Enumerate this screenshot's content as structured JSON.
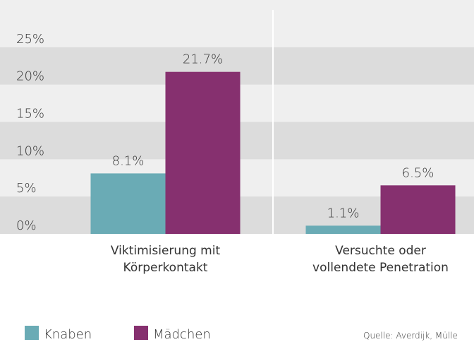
{
  "chart_data": {
    "type": "bar",
    "categories": [
      "Viktimisierung mit\nKörperkontakt",
      "Versuchte oder\nvollendete Penetration"
    ],
    "series": [
      {
        "name": "Knaben",
        "color": "#6aabb5",
        "values": [
          8.1,
          1.1
        ],
        "value_labels": [
          "8.1%",
          "1.1%"
        ]
      },
      {
        "name": "Mädchen",
        "color": "#86306f",
        "values": [
          21.7,
          6.5
        ],
        "value_labels": [
          "21.7%",
          "6.5%"
        ]
      }
    ],
    "ylim": [
      0,
      30
    ],
    "yticks": [
      {
        "value": 0,
        "label": "0%"
      },
      {
        "value": 5,
        "label": "5%"
      },
      {
        "value": 10,
        "label": "10%"
      },
      {
        "value": 15,
        "label": "15%"
      },
      {
        "value": 20,
        "label": "20%"
      },
      {
        "value": 25,
        "label": "25%"
      }
    ],
    "grid": true,
    "legend": "bottom-left",
    "source": "Quelle: Averdijk, Mülle"
  }
}
